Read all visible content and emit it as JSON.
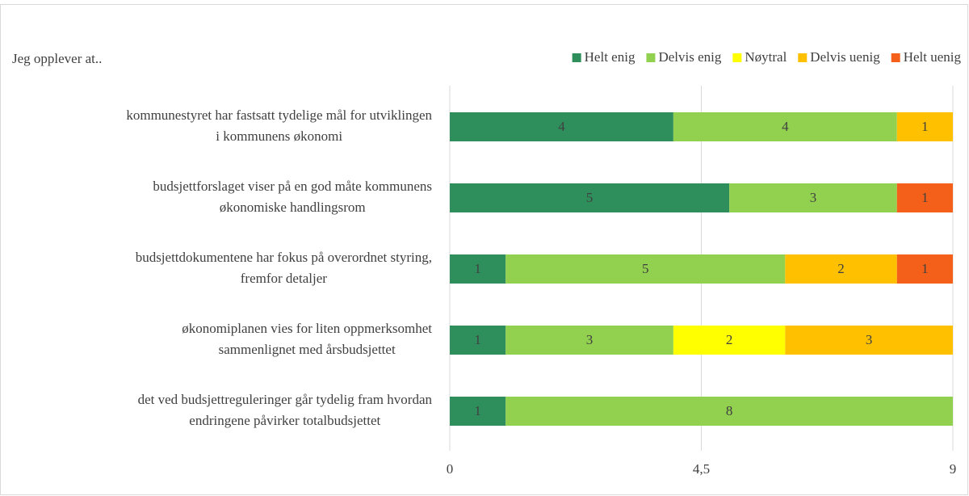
{
  "chart_data": {
    "type": "stacked_barh",
    "axis_label": "Jeg opplever at..",
    "categories": [
      [
        "kommunestyret har fastsatt tydelige mål for utviklingen",
        "i kommunens økonomi"
      ],
      [
        "budsjettforslaget viser på en god måte kommunens",
        "økonomiske handlingsrom"
      ],
      [
        "budsjettdokumentene har fokus på overordnet styring,",
        "fremfor detaljer"
      ],
      [
        "økonomiplanen vies for liten oppmerksomhet",
        "sammenlignet med årsbudsjettet"
      ],
      [
        "det ved budsjettreguleringer går tydelig fram hvordan",
        "endringene påvirker totalbudsjettet"
      ]
    ],
    "series": [
      {
        "name": "Helt enig",
        "color": "#2f8f5c",
        "values": [
          4,
          5,
          1,
          1,
          1
        ]
      },
      {
        "name": "Delvis enig",
        "color": "#92d050",
        "values": [
          4,
          3,
          5,
          3,
          8
        ]
      },
      {
        "name": "Nøytral",
        "color": "#ffff00",
        "values": [
          0,
          0,
          0,
          2,
          0
        ]
      },
      {
        "name": "Delvis uenig",
        "color": "#ffc000",
        "values": [
          1,
          0,
          2,
          3,
          0
        ]
      },
      {
        "name": "Helt uenig",
        "color": "#f4601a",
        "values": [
          0,
          1,
          1,
          0,
          0
        ]
      }
    ],
    "xlim": [
      0,
      9
    ],
    "xticks": [
      0,
      {
        "value": 4.5,
        "label": "4,5"
      },
      9
    ],
    "grid": true,
    "legend": "top-right"
  }
}
